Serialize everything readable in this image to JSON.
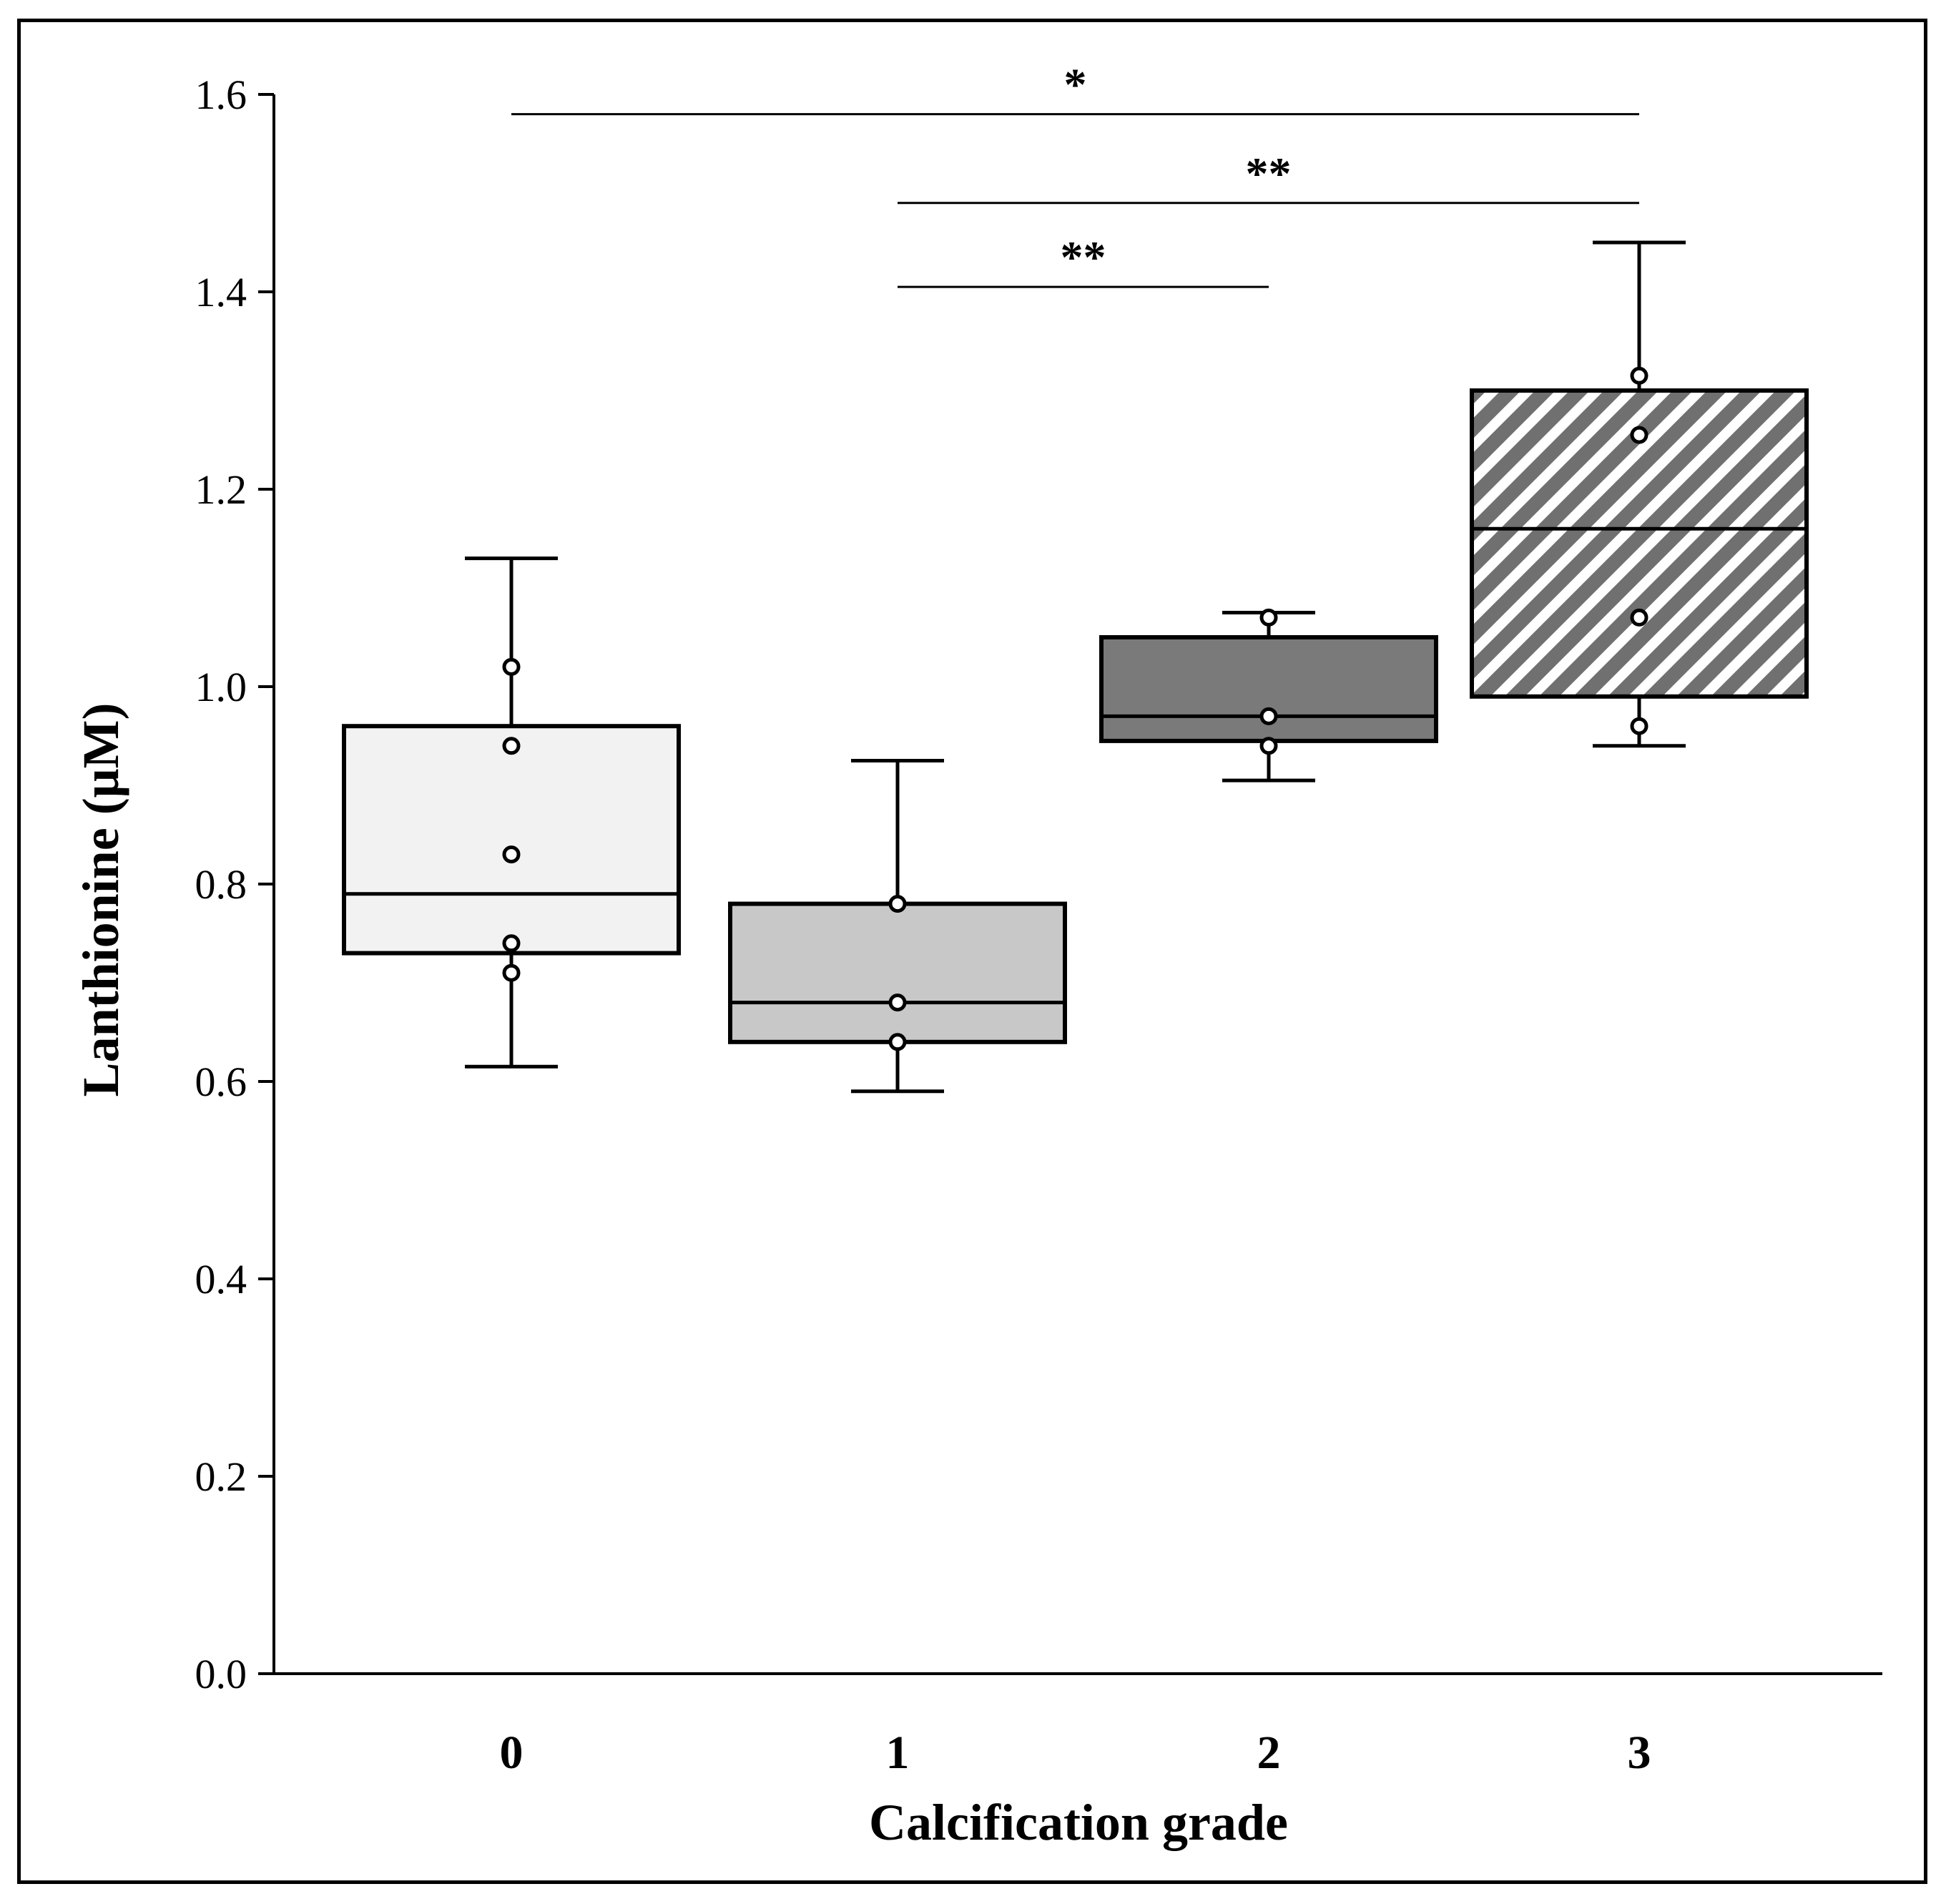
{
  "chart_data": {
    "type": "box",
    "title": "",
    "xlabel": "Calcification grade",
    "ylabel": "Lanthionine (μM)",
    "ylim": [
      0.0,
      1.6
    ],
    "yticks": [
      "0.0",
      "0.2",
      "0.4",
      "0.6",
      "0.8",
      "1.0",
      "1.2",
      "1.4",
      "1.6"
    ],
    "grid": false,
    "legend": "none",
    "categories": [
      "0",
      "1",
      "2",
      "3"
    ],
    "boxes": [
      {
        "category": "0",
        "whisker_low": 0.615,
        "q1": 0.73,
        "median": 0.79,
        "q3": 0.96,
        "whisker_high": 1.13,
        "points": [
          1.02,
          0.94,
          0.83,
          0.74,
          0.71
        ],
        "fill": "#f2f2f2",
        "pattern": "none"
      },
      {
        "category": "1",
        "whisker_low": 0.59,
        "q1": 0.64,
        "median": 0.68,
        "q3": 0.78,
        "whisker_high": 0.925,
        "points": [
          0.78,
          0.68,
          0.64
        ],
        "fill": "#c8c8c8",
        "pattern": "none"
      },
      {
        "category": "2",
        "whisker_low": 0.905,
        "q1": 0.945,
        "median": 0.97,
        "q3": 1.05,
        "whisker_high": 1.075,
        "points": [
          1.07,
          0.97,
          0.94
        ],
        "fill": "#7a7a7a",
        "pattern": "none"
      },
      {
        "category": "3",
        "whisker_low": 0.94,
        "q1": 0.99,
        "median": 1.16,
        "q3": 1.3,
        "whisker_high": 1.45,
        "points": [
          1.315,
          1.255,
          1.07,
          0.96
        ],
        "fill": "#ffffff",
        "pattern": "diagonal-stripes"
      }
    ],
    "significance": [
      {
        "from": "0",
        "to": "3",
        "y": 1.58,
        "label": "*"
      },
      {
        "from": "1",
        "to": "3",
        "y": 1.49,
        "label": "**"
      },
      {
        "from": "1",
        "to": "2",
        "y": 1.405,
        "label": "**"
      }
    ]
  },
  "colors": {
    "axis": "#000000",
    "hatch": "#707070",
    "point_fill": "#ffffff"
  }
}
